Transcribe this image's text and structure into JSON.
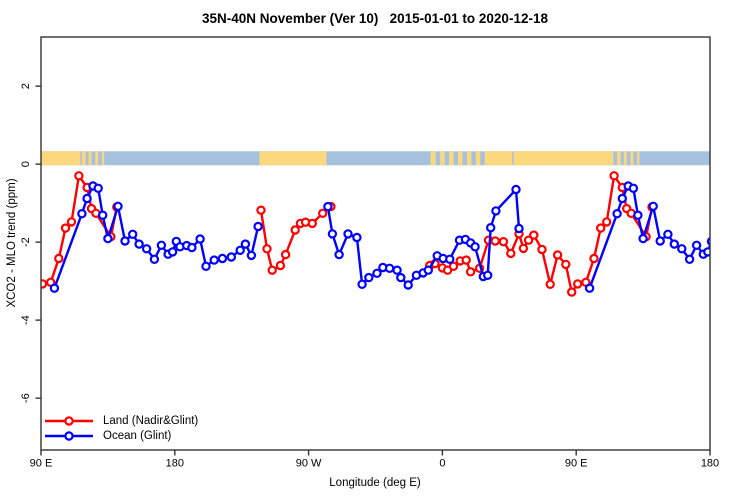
{
  "chart_data": {
    "type": "line",
    "title": "35N-40N November (Ver 10)   2015-01-01 to 2020-12-18",
    "xlabel": "Longitude (deg E)",
    "ylabel": "XCO2 - MLO trend (ppm)",
    "xlim": [
      90,
      540
    ],
    "ylim": [
      -7.33,
      3.26
    ],
    "grid": "off",
    "legend_position": "bottom-left",
    "x_ticks": [
      {
        "value": 90,
        "label": "90 E"
      },
      {
        "value": 180,
        "label": "180"
      },
      {
        "value": 270,
        "label": "90 W"
      },
      {
        "value": 360,
        "label": "0"
      },
      {
        "value": 450,
        "label": "90 E"
      },
      {
        "value": 540,
        "label": "180"
      }
    ],
    "y_ticks": [
      {
        "value": 2,
        "label": "2"
      },
      {
        "value": 0,
        "label": "0"
      },
      {
        "value": -2,
        "label": "-2"
      },
      {
        "value": -4,
        "label": "-4"
      },
      {
        "value": -6,
        "label": "-6"
      }
    ],
    "map_strip": {
      "description": "land/ocean strip for 35N-40N latitude band",
      "ocean_color": "#A6C1DE",
      "land_color": "#FBD87D",
      "value_top": 0.33,
      "value_bottom": -0.03,
      "range": [
        90,
        540
      ],
      "land_segments": [
        [
          90,
          116.5
        ],
        [
          117.5,
          120
        ],
        [
          122,
          124
        ],
        [
          126.5,
          128.5
        ],
        [
          131,
          132.5
        ],
        [
          237,
          282
        ],
        [
          352,
          355.5
        ],
        [
          358.5,
          361.5
        ],
        [
          364.5,
          367.5
        ],
        [
          370.5,
          373.5
        ],
        [
          376.5,
          379.5
        ],
        [
          382.5,
          385.5
        ],
        [
          388.5,
          407
        ],
        [
          408,
          475
        ],
        [
          477.5,
          480
        ],
        [
          482,
          484
        ],
        [
          486.5,
          488.5
        ],
        [
          491,
          492.5
        ]
      ]
    },
    "series": [
      {
        "name": "Land (Nadir&Glint)",
        "color": "#FF0000",
        "marker": "open-circle",
        "segments": [
          [
            [
              87,
              -3.28
            ],
            [
              91,
              -3.07
            ],
            [
              96.5,
              -3.03
            ],
            [
              102,
              -2.42
            ],
            [
              106.5,
              -1.64
            ],
            [
              110.5,
              -1.48
            ],
            [
              115.5,
              -0.3
            ],
            [
              121,
              -0.6
            ],
            [
              124,
              -1.14
            ],
            [
              127,
              -1.26
            ],
            [
              137,
              -1.86
            ],
            [
              141,
              -1.1
            ]
          ],
          [
            [
              238,
              -1.18
            ],
            [
              242,
              -2.17
            ],
            [
              245.5,
              -2.72
            ],
            [
              251,
              -2.6
            ],
            [
              254.5,
              -2.32
            ],
            [
              261,
              -1.69
            ],
            [
              264.5,
              -1.52
            ],
            [
              268,
              -1.49
            ],
            [
              272.5,
              -1.52
            ],
            [
              279.5,
              -1.26
            ],
            [
              285,
              -1.09
            ]
          ],
          [
            [
              351.5,
              -2.6
            ],
            [
              355,
              -2.55
            ],
            [
              360,
              -2.66
            ],
            [
              363.5,
              -2.72
            ],
            [
              367.5,
              -2.62
            ],
            [
              372,
              -2.48
            ],
            [
              376,
              -2.46
            ],
            [
              379,
              -2.76
            ],
            [
              385,
              -2.67
            ],
            [
              391,
              -1.95
            ],
            [
              395.5,
              -1.97
            ],
            [
              401,
              -1.99
            ],
            [
              406,
              -2.29
            ],
            [
              411.5,
              -1.79
            ],
            [
              414.5,
              -2.16
            ],
            [
              418,
              -1.95
            ],
            [
              421.5,
              -1.82
            ],
            [
              427,
              -2.19
            ],
            [
              432.5,
              -3.08
            ],
            [
              437.5,
              -2.33
            ],
            [
              443,
              -2.57
            ],
            [
              447,
              -3.28
            ],
            [
              451,
              -3.07
            ],
            [
              456.5,
              -3.03
            ],
            [
              462,
              -2.42
            ],
            [
              466.5,
              -1.64
            ],
            [
              470.5,
              -1.48
            ],
            [
              475.5,
              -0.3
            ],
            [
              481,
              -0.6
            ],
            [
              484,
              -1.14
            ],
            [
              487,
              -1.26
            ],
            [
              497,
              -1.86
            ],
            [
              501,
              -1.1
            ]
          ]
        ]
      },
      {
        "name": "Ocean (Glint)",
        "color": "#0000FF",
        "marker": "open-circle",
        "segments": [
          [
            [
              99,
              -3.18
            ],
            [
              117.5,
              -1.27
            ],
            [
              121,
              -0.88
            ],
            [
              125,
              -0.56
            ],
            [
              128.5,
              -0.62
            ],
            [
              131.5,
              -1.31
            ],
            [
              135,
              -1.91
            ],
            [
              141.8,
              -1.08
            ],
            [
              146.5,
              -1.97
            ],
            [
              151.7,
              -1.8
            ],
            [
              156,
              -2.05
            ],
            [
              161,
              -2.17
            ],
            [
              166.3,
              -2.44
            ],
            [
              171,
              -2.08
            ],
            [
              175.5,
              -2.31
            ],
            [
              178.5,
              -2.25
            ],
            [
              181,
              -1.98
            ],
            [
              183.5,
              -2.12
            ],
            [
              188,
              -2.09
            ],
            [
              191.5,
              -2.14
            ],
            [
              197,
              -1.92
            ],
            [
              201,
              -2.62
            ],
            [
              206.5,
              -2.46
            ],
            [
              212,
              -2.42
            ],
            [
              218,
              -2.38
            ],
            [
              224,
              -2.21
            ],
            [
              227.5,
              -2.05
            ],
            [
              231.5,
              -2.34
            ],
            [
              236,
              -1.6
            ]
          ],
          [
            [
              283,
              -1.09
            ],
            [
              286,
              -1.79
            ],
            [
              290.5,
              -2.32
            ],
            [
              296.5,
              -1.79
            ],
            [
              302.5,
              -1.88
            ],
            [
              306,
              -3.08
            ],
            [
              310.5,
              -2.91
            ],
            [
              316,
              -2.8
            ],
            [
              320,
              -2.65
            ],
            [
              324.5,
              -2.67
            ],
            [
              329.5,
              -2.72
            ],
            [
              332,
              -2.91
            ],
            [
              337,
              -3.1
            ],
            [
              342.5,
              -2.85
            ],
            [
              347,
              -2.79
            ],
            [
              350.5,
              -2.72
            ],
            [
              356.5,
              -2.35
            ],
            [
              360.5,
              -2.42
            ],
            [
              365,
              -2.44
            ],
            [
              371.5,
              -1.95
            ],
            [
              375.5,
              -1.93
            ],
            [
              379,
              -2.02
            ],
            [
              382,
              -2.12
            ],
            [
              387.5,
              -2.88
            ],
            [
              390.5,
              -2.85
            ],
            [
              392.5,
              -1.63
            ],
            [
              396,
              -1.2
            ],
            [
              409.5,
              -0.65
            ],
            [
              411.5,
              -1.65
            ]
          ],
          [
            [
              459,
              -3.18
            ],
            [
              477.5,
              -1.27
            ],
            [
              481,
              -0.88
            ],
            [
              485,
              -0.56
            ],
            [
              488.5,
              -0.62
            ],
            [
              491.5,
              -1.31
            ],
            [
              495,
              -1.91
            ],
            [
              501.8,
              -1.08
            ],
            [
              506.5,
              -1.97
            ],
            [
              511.7,
              -1.8
            ],
            [
              516,
              -2.05
            ],
            [
              521,
              -2.17
            ],
            [
              526.3,
              -2.44
            ],
            [
              531,
              -2.08
            ],
            [
              535.5,
              -2.31
            ],
            [
              538.5,
              -2.25
            ],
            [
              541,
              -1.98
            ]
          ]
        ]
      }
    ],
    "legend": {
      "entries": [
        "Land (Nadir&Glint)",
        "Ocean (Glint)"
      ]
    },
    "axis_color": "#333333",
    "marker_fill": "#FFFFFF"
  }
}
